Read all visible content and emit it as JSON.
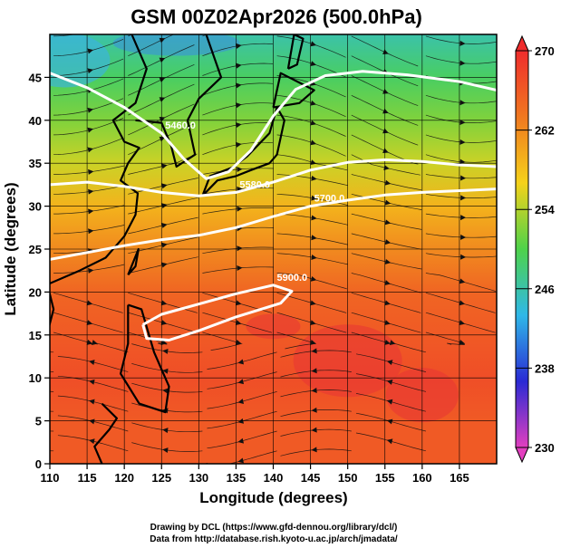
{
  "chart_data": {
    "type": "heatmap",
    "title": "GSM 00Z02Apr2026 (500.0hPa)",
    "xlabel": "Longitude (degrees)",
    "ylabel": "Latitude  (degrees)",
    "xlim": [
      110,
      170
    ],
    "ylim": [
      0,
      50
    ],
    "xticks": [
      110,
      115,
      120,
      125,
      130,
      135,
      140,
      145,
      150,
      155,
      160,
      165
    ],
    "yticks": [
      0,
      5,
      10,
      15,
      20,
      25,
      30,
      35,
      40,
      45
    ],
    "grid": true,
    "overlay": "wind streamlines with arrows",
    "colorbar": {
      "position": "right",
      "min": 230,
      "max": 270,
      "ticks": [
        230,
        238,
        246,
        254,
        262,
        270
      ],
      "colors": [
        "#e23fbf",
        "#2a2ad4",
        "#2fb8e8",
        "#4ed24a",
        "#f5d21a",
        "#f07820",
        "#ef2c2c"
      ]
    },
    "temperature_field_by_latitude": {
      "lat": [
        0,
        5,
        10,
        15,
        20,
        25,
        30,
        35,
        40,
        45,
        50
      ],
      "value": [
        266,
        266,
        267,
        266,
        265,
        262,
        259,
        255,
        252,
        249,
        246
      ]
    },
    "contours": [
      {
        "label": "5460.0",
        "lon": [
          110,
          115,
          120,
          125,
          128,
          131,
          134,
          137,
          140,
          143,
          147,
          152,
          158,
          165,
          170
        ],
        "lat": [
          45.5,
          43.8,
          41.5,
          38.5,
          35.5,
          33.2,
          34,
          36.5,
          40.5,
          43.6,
          45.2,
          45.7,
          45.3,
          44.5,
          43.5
        ]
      },
      {
        "label": "5580.0",
        "lon": [
          110,
          115,
          120,
          125,
          130,
          135,
          140,
          145,
          150,
          155,
          160,
          165,
          170
        ],
        "lat": [
          32.5,
          32.8,
          32.3,
          31.6,
          31.2,
          31.6,
          32.8,
          34.2,
          35.1,
          35.4,
          35.2,
          34.8,
          34.6
        ]
      },
      {
        "label": "5700.0",
        "lon": [
          110,
          115,
          120,
          125,
          130,
          135,
          140,
          145,
          150,
          155,
          160,
          165,
          170
        ],
        "lat": [
          23.8,
          24.6,
          25.4,
          26.1,
          26.6,
          27.5,
          28.8,
          30,
          30.7,
          31.3,
          31.6,
          31.8,
          32
        ]
      },
      {
        "label": "5900.0",
        "lon": [
          122.5,
          125,
          130,
          135,
          140,
          142.5,
          141,
          135,
          130,
          126,
          123,
          122.5
        ],
        "lat": [
          16.2,
          17.4,
          18.6,
          19.8,
          20.8,
          20.1,
          18.7,
          17.1,
          15.5,
          14.4,
          14.6,
          16.2
        ]
      }
    ],
    "credits": [
      "Drawing by DCL (https://www.gfd-dennou.org/library/dcl/)",
      "Data from http://database.rish.kyoto-u.ac.jp/arch/jmadata/"
    ]
  }
}
